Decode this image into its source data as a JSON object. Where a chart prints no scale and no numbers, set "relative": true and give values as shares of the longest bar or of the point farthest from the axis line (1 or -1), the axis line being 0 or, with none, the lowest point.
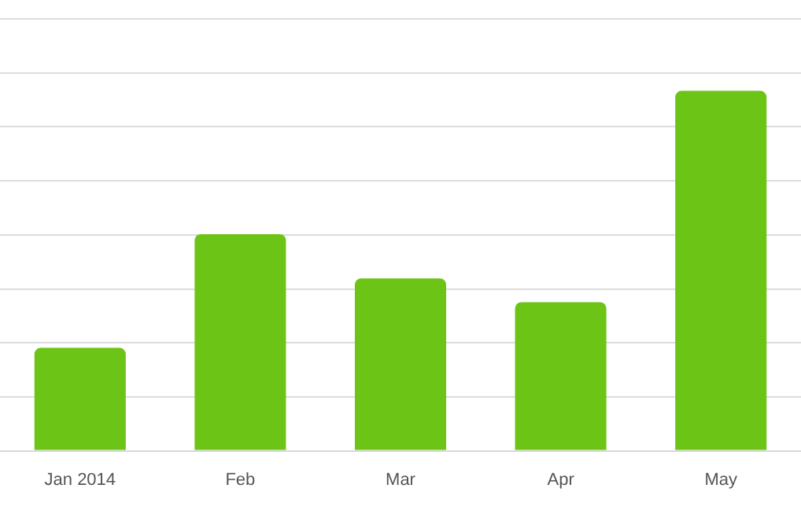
{
  "chart_data": {
    "type": "bar",
    "relative": true,
    "categories": [
      "Jan 2014",
      "Feb",
      "Mar",
      "Apr",
      "May"
    ],
    "values": [
      0.286,
      0.602,
      0.479,
      0.413,
      1
    ],
    "color": "#6cc417",
    "grid": "y"
  }
}
